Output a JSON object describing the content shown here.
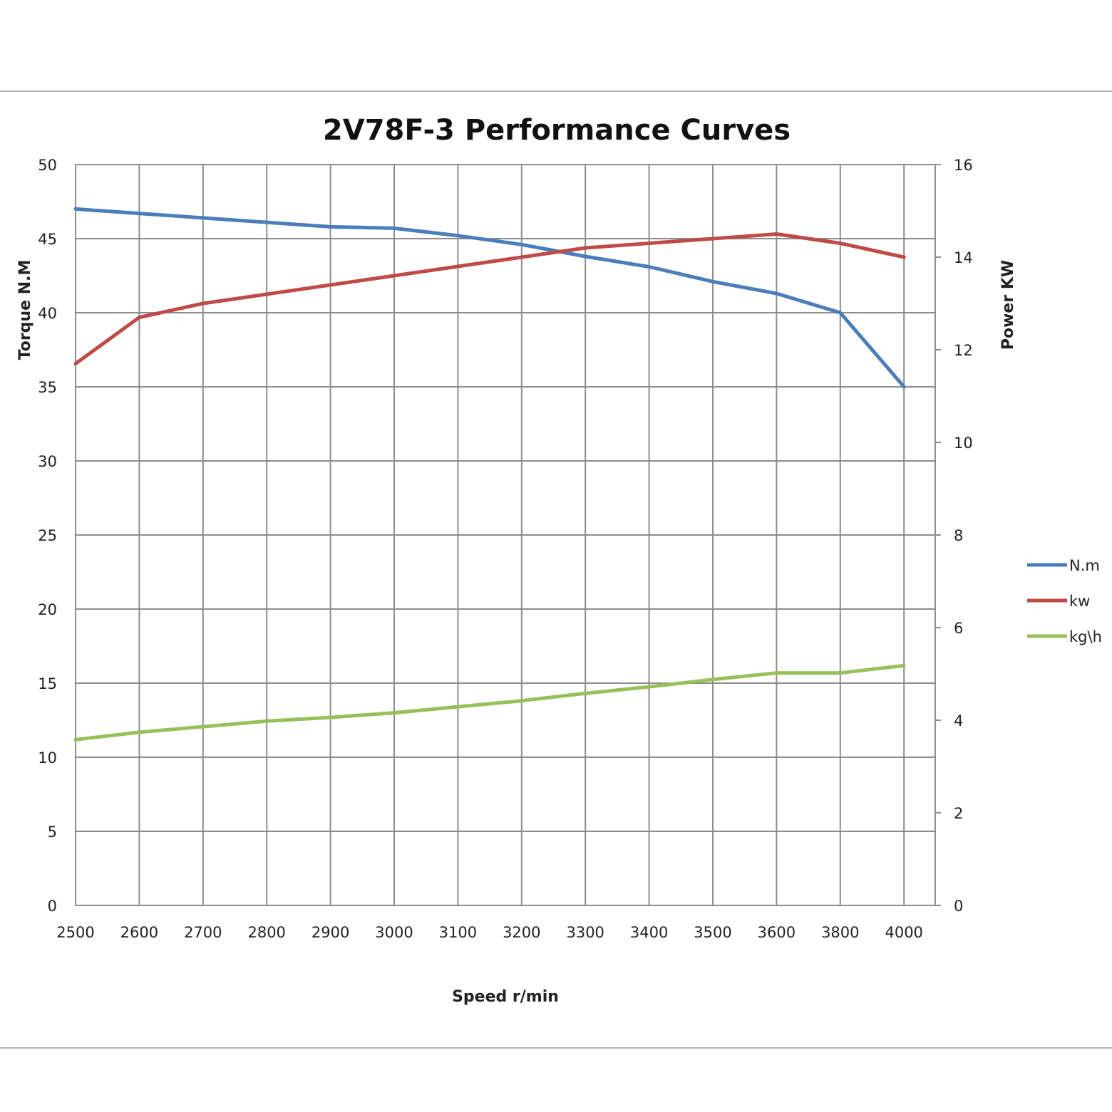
{
  "chart_data": {
    "type": "line",
    "title": "2V78F-3 Performance Curves",
    "xlabel": "Speed r/min",
    "ylabel_left": "Torque N.M",
    "ylabel_right": "Power KW",
    "categories": [
      "2500",
      "2600",
      "2700",
      "2800",
      "2900",
      "3000",
      "3100",
      "3200",
      "3300",
      "3400",
      "3500",
      "3600",
      "3800",
      "4000"
    ],
    "y_left": {
      "min": 0,
      "max": 50,
      "step": 5,
      "ticks": [
        "0",
        "5",
        "10",
        "15",
        "20",
        "25",
        "30",
        "35",
        "40",
        "45",
        "50"
      ]
    },
    "y_right": {
      "min": 0,
      "max": 16,
      "step": 2,
      "ticks": [
        "0",
        "2",
        "4",
        "6",
        "8",
        "10",
        "12",
        "14",
        "16"
      ]
    },
    "grid": true,
    "legend_position": "right",
    "series": [
      {
        "name": "N.m",
        "axis": "left",
        "color": "#4a7ebb",
        "values": [
          47.0,
          46.7,
          46.4,
          46.1,
          45.8,
          45.7,
          45.2,
          44.6,
          43.8,
          43.1,
          42.1,
          41.3,
          40.0,
          35.0
        ]
      },
      {
        "name": "kw",
        "axis": "right",
        "color": "#be4b48",
        "values": [
          11.7,
          12.7,
          13.0,
          13.2,
          13.4,
          13.6,
          13.8,
          14.0,
          14.2,
          14.3,
          14.4,
          14.5,
          14.3,
          14.0
        ]
      },
      {
        "name": "kg\\h",
        "axis": "right",
        "color": "#98c05a",
        "values": [
          3.58,
          3.74,
          3.86,
          3.98,
          4.06,
          4.16,
          4.29,
          4.42,
          4.58,
          4.72,
          4.88,
          5.02,
          5.02,
          5.18
        ]
      }
    ]
  }
}
